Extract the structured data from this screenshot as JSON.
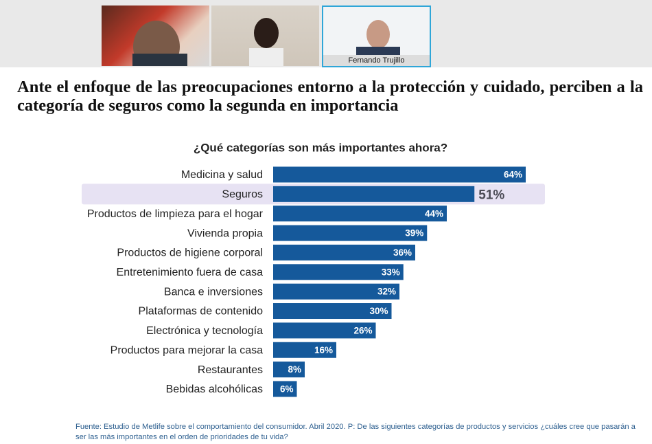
{
  "presenter_label": "Fernando Trujillo",
  "slide": {
    "heading": "Ante el enfoque de las preocupaciones entorno a la protección y cuidado, perciben a la categoría de seguros como la segunda en importancia",
    "source": "Fuente: Estudio de Metlife sobre el comportamiento del consumidor. Abril 2020. P: De las siguientes categorías de productos y servicios ¿cuáles cree que pasarán a ser las más importantes en el orden de prioridades de tu vida?"
  },
  "chart_data": {
    "type": "bar",
    "orientation": "horizontal",
    "title": "¿Qué categorías son más importantes ahora?",
    "categories": [
      "Medicina y salud",
      "Seguros",
      "Productos de limpieza para el hogar",
      "Vivienda propia",
      "Productos de higiene corporal",
      "Entretenimiento fuera de casa",
      "Banca e inversiones",
      "Plataformas de contenido",
      "Electrónica y tecnología",
      "Productos para mejorar la casa",
      "Restaurantes",
      "Bebidas alcohólicas"
    ],
    "values": [
      64,
      51,
      44,
      39,
      36,
      33,
      32,
      30,
      26,
      16,
      8,
      6
    ],
    "value_labels": [
      "64%",
      "51%",
      "44%",
      "39%",
      "36%",
      "33%",
      "32%",
      "30%",
      "26%",
      "16%",
      "8%",
      "6%"
    ],
    "color": "#15599b",
    "highlighted": "Seguros",
    "highlight_color": "#e7e2f3"
  }
}
